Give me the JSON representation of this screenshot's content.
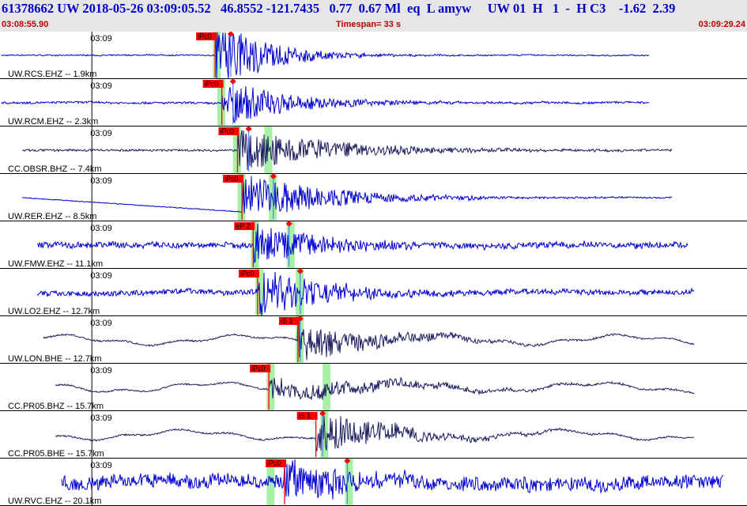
{
  "header": {
    "title_line": "61378662 UW 2018-05-26 03:09:05.52   46.8552 -121.7435   0.77  0.67 Ml  eq  L amyw     UW 01  H   1  -  H C3    -1.62  2.39",
    "start_time": "03:08:55.90",
    "timespan": "Timespan=  33 s",
    "end_time": "03:09:29.24"
  },
  "colors": {
    "blue_trace": "#0000d0",
    "dark_trace": "#1c1c60",
    "pick": "#ff0000",
    "window": "#a8f0a8",
    "header_bg": "#e6e6e6"
  },
  "tick_label": "03:09",
  "traces": [
    {
      "label": "UW.RCS.EHZ -- 1.9km",
      "color": "blue",
      "pick": "iPc0",
      "pick_t": 9.6,
      "marker_t": 10.3,
      "end_t": 29.0,
      "noise": 0.03,
      "burst_amp": 0.9,
      "decay": 2.2,
      "win1_t": 9.5,
      "win2_t": null,
      "offset_step": false
    },
    {
      "label": "UW.RCM.EHZ -- 2.3km",
      "color": "blue",
      "pick": "iPc0",
      "pick_t": 9.9,
      "marker_t": 10.4,
      "end_t": 29.0,
      "noise": 0.05,
      "burst_amp": 0.55,
      "decay": 3.0,
      "win1_t": 9.7,
      "win2_t": null,
      "offset_step": false
    },
    {
      "label": "CC.OBSR.BHZ -- 7.4km",
      "color": "dark",
      "pick": "iPc0",
      "pick_t": 10.6,
      "marker_t": 11.1,
      "end_t": 30.0,
      "noise": 0.05,
      "burst_amp": 0.5,
      "decay": 4.5,
      "win1_t": 10.4,
      "win2_t": 11.8,
      "offset_step": false
    },
    {
      "label": "UW.RER.EHZ -- 8.5km",
      "color": "blue",
      "pick": "iPc0",
      "pick_t": 10.8,
      "marker_t": 12.2,
      "end_t": 30.0,
      "noise": 0.03,
      "burst_amp": 0.55,
      "decay": 4.0,
      "win1_t": 10.6,
      "win2_t": 12.0,
      "offset_step": true
    },
    {
      "label": "UW.FMW.EHZ -- 11.1km",
      "color": "blue",
      "pick": "eP 2",
      "pick_t": 11.3,
      "marker_t": 12.9,
      "end_t": 30.7,
      "noise": 0.14,
      "burst_amp": 0.5,
      "decay": 3.2,
      "win1_t": 11.2,
      "win2_t": 12.8,
      "offset_step": false
    },
    {
      "label": "UW.LO2.EHZ -- 12.7km",
      "color": "blue",
      "pick": "iPc0",
      "pick_t": 11.5,
      "marker_t": 13.4,
      "end_t": 31.0,
      "noise": 0.12,
      "burst_amp": 0.6,
      "decay": 3.0,
      "win1_t": 11.4,
      "win2_t": 13.2,
      "offset_step": false
    },
    {
      "label": "UW.LON.BHE -- 12.7km",
      "color": "dark",
      "pick": "iS 1",
      "pick_t": 13.3,
      "marker_t": 13.4,
      "end_t": 31.0,
      "noise": 0.05,
      "burst_amp": 0.45,
      "decay": 3.5,
      "win1_t": null,
      "win2_t": 13.2,
      "offset_step": false
    },
    {
      "label": "CC.PR05.BHZ -- 15.7km",
      "color": "dark",
      "pick": "iPc0",
      "pick_t": 12.0,
      "marker_t": null,
      "end_t": 31.0,
      "noise": 0.06,
      "burst_amp": 0.3,
      "decay": 5.0,
      "win1_t": 11.9,
      "win2_t": 14.4,
      "offset_step": false
    },
    {
      "label": "CC.PR05.BHE -- 15.7km",
      "color": "dark",
      "pick": "iS 1",
      "pick_t": 14.1,
      "marker_t": 14.4,
      "end_t": 31.0,
      "noise": 0.08,
      "burst_amp": 0.5,
      "decay": 3.5,
      "win1_t": null,
      "win2_t": 14.3,
      "offset_step": false
    },
    {
      "label": "UW.RVC.EHZ -- 20.1km",
      "color": "blue",
      "pick": "iPc0",
      "pick_t": 12.7,
      "marker_t": 15.5,
      "end_t": 32.3,
      "noise": 0.32,
      "burst_amp": 0.6,
      "decay": 2.5,
      "win1_t": 11.9,
      "win2_t": 15.4,
      "offset_step": false
    }
  ]
}
